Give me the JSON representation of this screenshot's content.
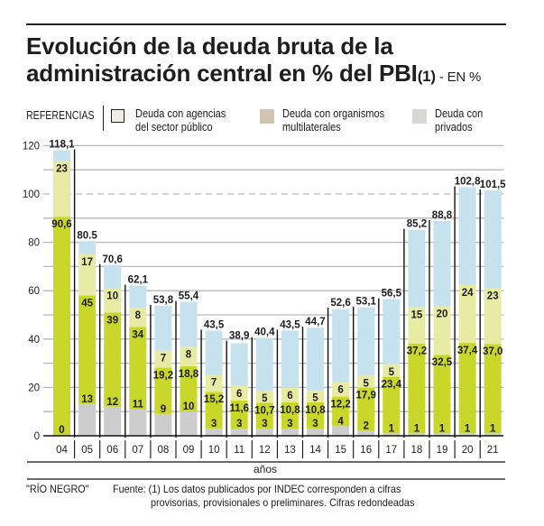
{
  "title": {
    "line1": "Evolución de la deuda bruta de la",
    "line2_main": "administración central en % del PBI",
    "line2_note": "(1)",
    "line2_unit": " - EN %"
  },
  "legend": {
    "label": "REFERENCIAS",
    "items": [
      {
        "label_line1": "Deuda con agencias",
        "label_line2": "del sector público",
        "color": "#efece3"
      },
      {
        "label_line1": "Deuda con organismos",
        "label_line2": "multilaterales",
        "color": "#d2c2b0"
      },
      {
        "label_line1": "Deuda con",
        "label_line2": "privados",
        "color": "#d7d8d3"
      }
    ]
  },
  "chart_data": {
    "type": "bar",
    "stacked": true,
    "title": "Evolución de la deuda bruta de la administración central en % del PBI (1) - EN %",
    "xlabel": "años",
    "ylabel": "",
    "ylim": [
      0,
      120
    ],
    "yticks": [
      0,
      20,
      40,
      60,
      80,
      100,
      120
    ],
    "grid": true,
    "grid_step": 10,
    "dashed_gridline": 100,
    "categories": [
      "04",
      "05",
      "06",
      "07",
      "08",
      "09",
      "10",
      "11",
      "12",
      "13",
      "14",
      "15",
      "16",
      "17",
      "18",
      "19",
      "20",
      "21"
    ],
    "series": [
      {
        "name": "segmento gris (base)",
        "color": "#cdcdd0",
        "values": [
          0,
          13,
          12,
          11,
          9,
          10,
          3,
          3,
          3,
          3,
          3,
          4,
          2,
          1,
          1,
          1,
          1,
          1
        ],
        "labels": [
          "0",
          "13",
          "12",
          "11",
          "9",
          "10",
          "3",
          "3",
          "3",
          "3",
          "3",
          "4",
          "2",
          "1",
          "1",
          "1",
          "1",
          "1"
        ]
      },
      {
        "name": "segmento verde",
        "color": "#c9d62a",
        "values": [
          90.6,
          45,
          39,
          34,
          19.2,
          18.8,
          15.2,
          11.6,
          10.7,
          10.8,
          10.8,
          12.2,
          17.9,
          23.4,
          37.2,
          32.5,
          37.4,
          37.0
        ],
        "labels": [
          "90,6",
          "45",
          "39",
          "34",
          "19,2",
          "18,8",
          "15,2",
          "11,6",
          "10,7",
          "10,8",
          "10,8",
          "12,2",
          "17,9",
          "23,4",
          "37,2",
          "32,5",
          "37,4",
          "37,0"
        ]
      },
      {
        "name": "segmento amarillo",
        "color": "#e8eba4",
        "values": [
          23,
          17,
          10,
          8,
          7,
          8,
          7,
          6,
          5,
          6,
          5,
          6,
          5,
          5,
          15,
          20,
          24,
          23
        ],
        "labels": [
          "23",
          "17",
          "10",
          "8",
          "7",
          "8",
          "7",
          "6",
          "5",
          "6",
          "5",
          "6",
          "5",
          "5",
          "15",
          "20",
          "24",
          "23"
        ]
      },
      {
        "name": "segmento celeste (resto)",
        "color": "#c6e2ee",
        "values": [
          4.5,
          5.5,
          9.6,
          9.1,
          18.6,
          18.6,
          18.3,
          17.7,
          21.7,
          23.7,
          25.9,
          30.2,
          28.2,
          27.1,
          32.0,
          35.3,
          40.4,
          40.5
        ]
      }
    ],
    "totals": [
      118.1,
      80.5,
      70.6,
      62.1,
      53.8,
      55.4,
      43.5,
      38.9,
      40.4,
      43.5,
      44.7,
      52.6,
      53.1,
      56.5,
      85.2,
      88.8,
      102.8,
      101.5
    ],
    "total_labels": [
      "118,1",
      "80.5",
      "70,6",
      "62,1",
      "53,8",
      "55,4",
      "43,5",
      "38,9",
      "40,4",
      "43,5",
      "44,7",
      "52,6",
      "53,1",
      "56,5",
      "85,2",
      "88,8",
      "102,8",
      "101,5"
    ]
  },
  "footer": {
    "source_credit": "\"RÍO NEGRO\"",
    "note_line1": "Fuente: (1) Los datos publicados por INDEC corresponden a cifras",
    "note_line2": "provisorias, provisionales o preliminares. Cifras redondeadas"
  }
}
